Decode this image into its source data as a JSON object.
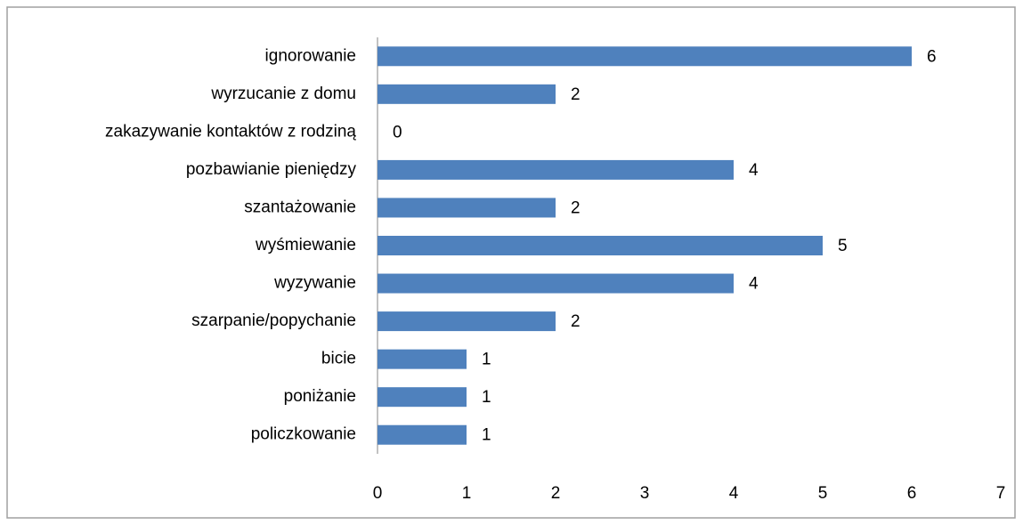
{
  "chart_data": {
    "type": "bar",
    "orientation": "horizontal",
    "categories": [
      "ignorowanie",
      "wyrzucanie z domu",
      "zakazywanie kontaktów z rodziną",
      "pozbawianie pieniędzy",
      "szantażowanie",
      "wyśmiewanie",
      "wyzywanie",
      "szarpanie/popychanie",
      "bicie",
      "poniżanie",
      "policzkowanie"
    ],
    "values": [
      6,
      2,
      0,
      4,
      2,
      5,
      4,
      2,
      1,
      1,
      1
    ],
    "color": "#4f81bd",
    "xlim": [
      0,
      7
    ],
    "xticks": [
      0,
      1,
      2,
      3,
      4,
      5,
      6,
      7
    ],
    "grid": false
  }
}
